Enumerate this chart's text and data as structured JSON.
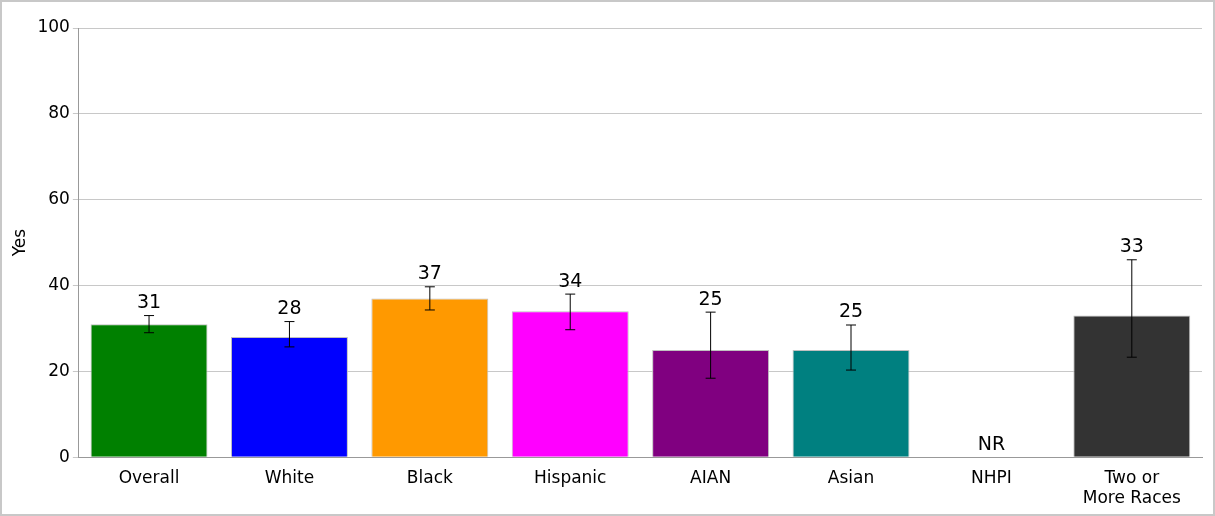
{
  "chart_data": {
    "type": "bar",
    "ylabel": "Yes",
    "categories": [
      "Overall",
      "White",
      "Black",
      "Hispanic",
      "AIAN",
      "Asian",
      "NHPI",
      "Two or More Races"
    ],
    "values": [
      31,
      28,
      37,
      34,
      25,
      25,
      null,
      33
    ],
    "colors": [
      "#008000",
      "#0000ff",
      "#ff9900",
      "#ff00ff",
      "#800080",
      "#008080",
      "#808080",
      "#333333"
    ],
    "errors": [
      [
        29,
        33
      ],
      [
        25.7,
        31.6
      ],
      [
        34.3,
        39.7
      ],
      [
        29.7,
        38
      ],
      [
        18.4,
        33.8
      ],
      [
        20.3,
        30.8
      ],
      null,
      [
        23.3,
        46
      ]
    ],
    "value_labels": [
      "31",
      "28",
      "37",
      "34",
      "25",
      "25",
      "NR",
      "33"
    ],
    "ylim": [
      0,
      100
    ],
    "yticks": [
      0,
      20,
      40,
      60,
      80,
      100
    ],
    "grid": "y",
    "legend": false
  }
}
